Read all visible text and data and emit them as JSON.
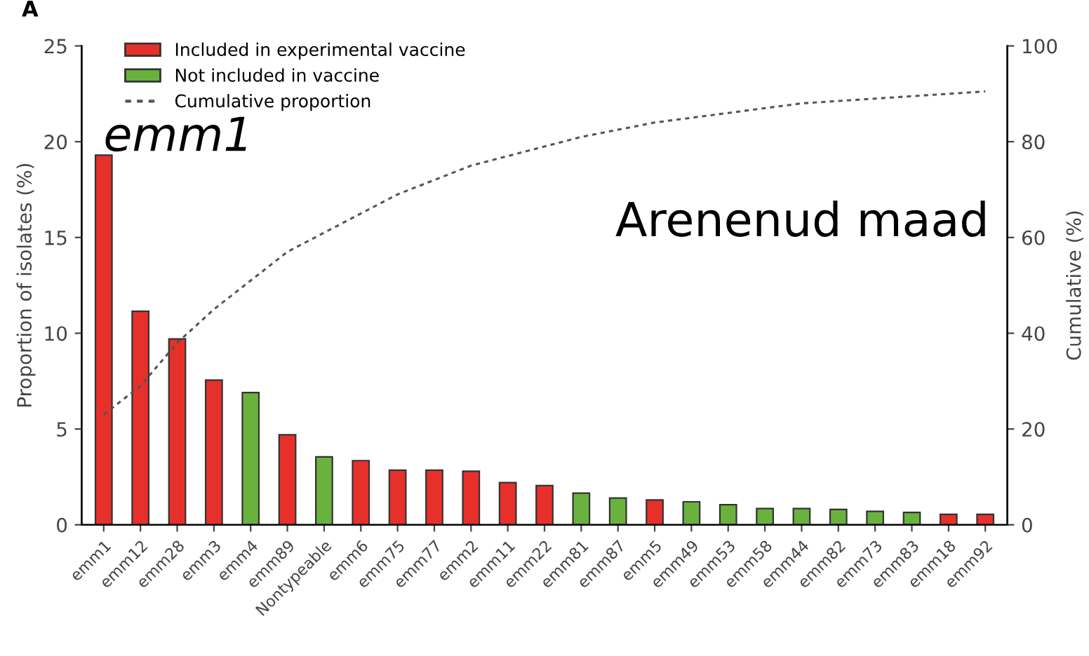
{
  "chart_data": {
    "type": "bar",
    "ylabel": "Proportion of isolates (%)",
    "y2label": "Cumulative (%)",
    "categories": [
      "emm1",
      "emm12",
      "emm28",
      "emm3",
      "emm4",
      "emm89",
      "Nontypeable",
      "emm6",
      "emm75",
      "emm77",
      "emm2",
      "emm11",
      "emm22",
      "emm81",
      "emm87",
      "emm5",
      "emm49",
      "emm53",
      "emm58",
      "emm44",
      "emm82",
      "emm73",
      "emm83",
      "emm18",
      "emm92"
    ],
    "series": [
      {
        "name": "Included in experimental vaccine",
        "color": "#e8302a",
        "values": [
          19.3,
          11.15,
          9.7,
          7.55,
          null,
          4.7,
          null,
          3.35,
          2.85,
          2.85,
          2.8,
          2.2,
          2.05,
          null,
          null,
          1.3,
          null,
          null,
          null,
          null,
          null,
          null,
          null,
          0.55,
          0.55
        ]
      },
      {
        "name": "Not included in vaccine",
        "color": "#6ab23e",
        "values": [
          null,
          null,
          null,
          null,
          6.9,
          null,
          3.55,
          null,
          null,
          null,
          null,
          null,
          null,
          1.65,
          1.4,
          null,
          1.2,
          1.05,
          0.85,
          0.85,
          0.8,
          0.7,
          0.65,
          null,
          null
        ]
      },
      {
        "name": "Cumulative proportion",
        "type": "line",
        "axis": "y2",
        "line_style": "dotted",
        "color": "#555555",
        "values": [
          23,
          29,
          38,
          45,
          51,
          57,
          61,
          65,
          69,
          72,
          75,
          77,
          79,
          81,
          82.5,
          84,
          85,
          86,
          87,
          88,
          88.5,
          89,
          89.5,
          90,
          90.5
        ]
      }
    ],
    "ylim": [
      0,
      25
    ],
    "yticks": [
      0,
      5,
      10,
      15,
      20,
      25
    ],
    "y2lim": [
      0,
      100
    ],
    "y2ticks": [
      0,
      20,
      40,
      60,
      80,
      100
    ],
    "legend": "top left",
    "grid": false,
    "annotations": [
      "A",
      "emm1",
      "Arenenud maad"
    ]
  }
}
